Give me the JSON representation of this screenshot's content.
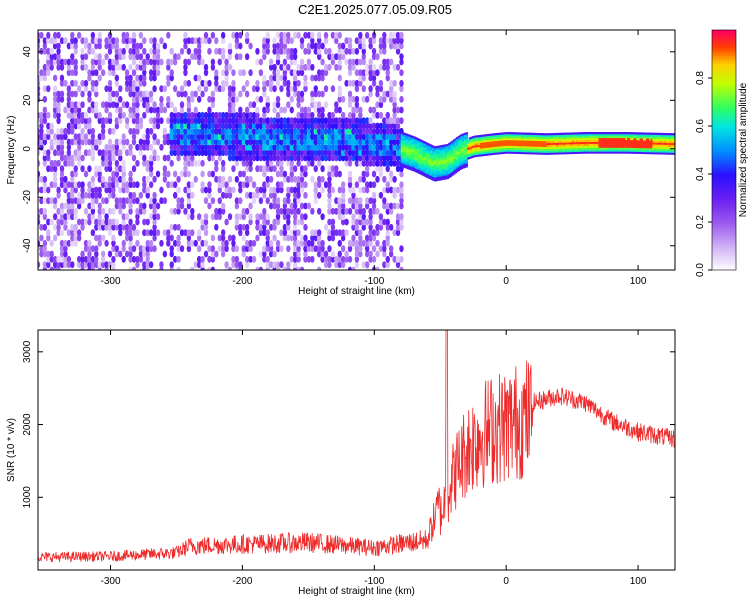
{
  "title": "C2E1.2025.077.05.09.R05",
  "chart_data": [
    {
      "type": "heatmap",
      "name": "spectrogram",
      "xlabel": "Height of straight line (km)",
      "ylabel": "Frequency (Hz)",
      "xlim": [
        -355,
        128
      ],
      "ylim": [
        -50,
        49
      ],
      "xticks": [
        -300,
        -200,
        -100,
        0,
        100
      ],
      "yticks": [
        -40,
        -20,
        0,
        20,
        40
      ],
      "colorbar": {
        "label": "Normalized spectral amplitude",
        "range": [
          0,
          1
        ],
        "ticks": [
          0.0,
          0.2,
          0.4,
          0.6,
          0.8
        ],
        "colormap": [
          "#ffffff",
          "#c9a8f2",
          "#7a2cf0",
          "#3a00ff",
          "#0060ff",
          "#00e0ff",
          "#30ff60",
          "#b0ff00",
          "#ffe000",
          "#ff4000",
          "#ff0060"
        ]
      },
      "ridge": {
        "description_points": [
          [
            -255,
            6
          ],
          [
            -200,
            5
          ],
          [
            -150,
            4
          ],
          [
            -110,
            3
          ],
          [
            -85,
            1
          ],
          [
            -70,
            -2
          ],
          [
            -55,
            -6
          ],
          [
            -45,
            -5
          ],
          [
            -35,
            -1
          ],
          [
            -25,
            1
          ],
          [
            -10,
            2
          ],
          [
            0,
            2.5
          ],
          [
            30,
            2
          ],
          [
            60,
            2.5
          ],
          [
            90,
            2.5
          ],
          [
            128,
            2
          ]
        ],
        "peak_amplitude": 0.95
      }
    },
    {
      "type": "line",
      "name": "snr",
      "xlabel": "Height of straight line (km)",
      "ylabel": "SNR (10 * v/v)",
      "xlim": [
        -355,
        128
      ],
      "ylim": [
        0,
        3300
      ],
      "xticks": [
        -300,
        -200,
        -100,
        0,
        100
      ],
      "yticks": [
        1000,
        2000,
        3000
      ],
      "color": "#ee2a2a",
      "envelope": [
        [
          -355,
          150
        ],
        [
          -300,
          160
        ],
        [
          -250,
          200
        ],
        [
          -240,
          280
        ],
        [
          -200,
          300
        ],
        [
          -150,
          320
        ],
        [
          -100,
          260
        ],
        [
          -60,
          350
        ],
        [
          -50,
          800
        ],
        [
          -40,
          1400
        ],
        [
          -30,
          1800
        ],
        [
          -20,
          2000
        ],
        [
          -10,
          2100
        ],
        [
          0,
          2150
        ],
        [
          20,
          2300
        ],
        [
          40,
          2400
        ],
        [
          60,
          2300
        ],
        [
          80,
          2050
        ],
        [
          100,
          1900
        ],
        [
          128,
          1800
        ]
      ],
      "peak": [
        -45,
        3300
      ]
    }
  ]
}
